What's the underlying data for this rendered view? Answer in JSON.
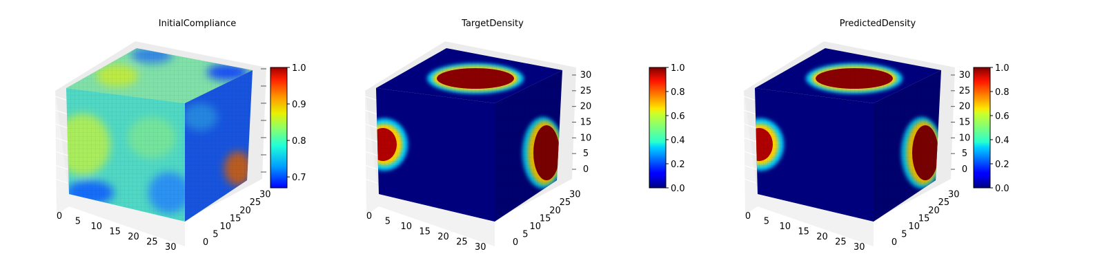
{
  "colormap": "jet",
  "chart_data": [
    {
      "type": "voxel-3d",
      "title": "InitialCompliance",
      "axes_ticks": {
        "x": [
          0,
          5,
          10,
          15,
          20,
          25,
          30
        ],
        "y": [
          0,
          5,
          10,
          15,
          20,
          25,
          30
        ],
        "z": []
      },
      "grid_size": [
        32,
        32,
        32
      ],
      "colorbar": {
        "range": [
          0.67,
          1.0
        ],
        "ticks": [
          "0.7",
          "0.8",
          "0.9",
          "1.0"
        ]
      },
      "field": "smooth mixed field with values mostly between 0.7 and 0.9; yellowish areas on top and front-left, blue pockets near bottom corners"
    },
    {
      "type": "voxel-3d",
      "title": "TargetDensity",
      "axes_ticks": {
        "x": [
          0,
          5,
          10,
          15,
          20,
          25,
          30
        ],
        "y": [
          0,
          5,
          10,
          15,
          20,
          25,
          30
        ],
        "z": [
          0,
          5,
          10,
          15,
          20,
          25,
          30
        ]
      },
      "grid_size": [
        32,
        32,
        32
      ],
      "colorbar": {
        "range": [
          0.0,
          1.0
        ],
        "ticks": [
          "0.0",
          "0.2",
          "0.4",
          "0.6",
          "0.8",
          "1.0"
        ]
      },
      "field": "low-density (0.0) background with high-density (1.0) blobs on top face, left face and right face"
    },
    {
      "type": "voxel-3d",
      "title": "PredictedDensity",
      "axes_ticks": {
        "x": [
          0,
          5,
          10,
          15,
          20,
          25,
          30
        ],
        "y": [
          0,
          5,
          10,
          15,
          20,
          25,
          30
        ],
        "z": [
          0,
          5,
          10,
          15,
          20,
          25,
          30
        ]
      },
      "grid_size": [
        32,
        32,
        32
      ],
      "colorbar": {
        "range": [
          0.0,
          1.0
        ],
        "ticks": [
          "0.0",
          "0.2",
          "0.4",
          "0.6",
          "0.8",
          "1.0"
        ]
      },
      "field": "low-density (0.0) background with high-density (1.0) blobs on top face, left face and right face"
    }
  ]
}
